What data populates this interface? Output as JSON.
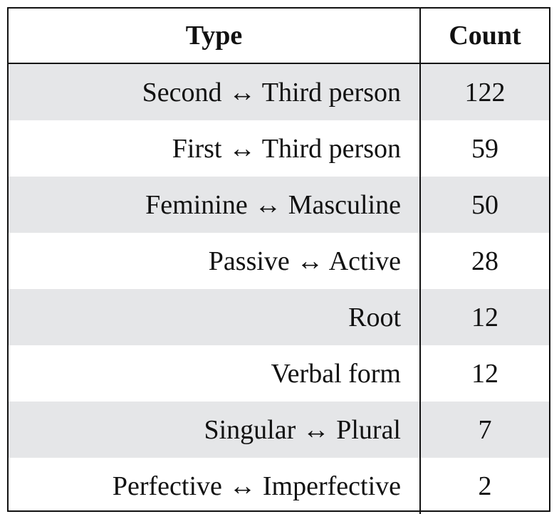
{
  "chart_data": {
    "type": "table",
    "columns": [
      "Type",
      "Count"
    ],
    "rows": [
      {
        "type": "Second ↔ Third person",
        "count": 122
      },
      {
        "type": "First ↔ Third person",
        "count": 59
      },
      {
        "type": "Feminine ↔ Masculine",
        "count": 50
      },
      {
        "type": "Passive ↔ Active",
        "count": 28
      },
      {
        "type": "Root",
        "count": 12
      },
      {
        "type": "Verbal form",
        "count": 12
      },
      {
        "type": "Singular ↔ Plural",
        "count": 7
      },
      {
        "type": "Perfective ↔ Imperfective",
        "count": 2
      }
    ],
    "row_shading": "alternating",
    "shade_color": "#e5e6e8"
  }
}
